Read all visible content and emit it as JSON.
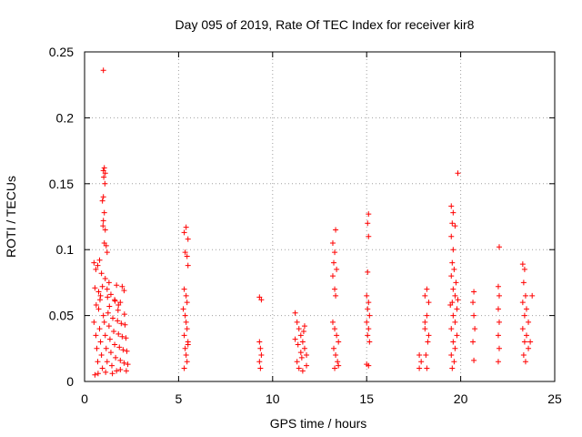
{
  "chart_data": {
    "type": "scatter",
    "title": "Day 095 of 2019, Rate Of TEC Index for receiver kir8",
    "xlabel": "GPS time / hours",
    "ylabel": "ROTI / TECUs",
    "xlim": [
      0,
      25
    ],
    "ylim": [
      0,
      0.25
    ],
    "xticks": [
      0,
      5,
      10,
      15,
      20,
      25
    ],
    "yticks": [
      0,
      0.05,
      0.1,
      0.15,
      0.2,
      0.25
    ],
    "xtick_labels": [
      "0",
      "5",
      "10",
      "15",
      "20",
      "25"
    ],
    "ytick_labels": [
      "0",
      "0.05",
      "0.1",
      "0.15",
      "0.2",
      "0.25"
    ],
    "grid": true,
    "marker": "+",
    "color": "#ff0000",
    "series": [
      {
        "name": "ROTI",
        "points": [
          [
            1.0,
            0.236
          ],
          [
            1.05,
            0.162
          ],
          [
            1.0,
            0.16
          ],
          [
            1.1,
            0.158
          ],
          [
            1.02,
            0.155
          ],
          [
            1.08,
            0.15
          ],
          [
            1.0,
            0.14
          ],
          [
            0.95,
            0.137
          ],
          [
            1.05,
            0.128
          ],
          [
            1.0,
            0.122
          ],
          [
            0.98,
            0.118
          ],
          [
            1.1,
            0.115
          ],
          [
            1.05,
            0.105
          ],
          [
            1.15,
            0.103
          ],
          [
            1.2,
            0.098
          ],
          [
            0.5,
            0.09
          ],
          [
            0.6,
            0.085
          ],
          [
            0.7,
            0.088
          ],
          [
            0.8,
            0.092
          ],
          [
            0.9,
            0.082
          ],
          [
            1.1,
            0.078
          ],
          [
            1.3,
            0.075
          ],
          [
            0.55,
            0.071
          ],
          [
            0.75,
            0.068
          ],
          [
            0.85,
            0.065
          ],
          [
            0.95,
            0.072
          ],
          [
            1.2,
            0.07
          ],
          [
            1.4,
            0.066
          ],
          [
            1.6,
            0.062
          ],
          [
            1.8,
            0.058
          ],
          [
            2.0,
            0.072
          ],
          [
            2.1,
            0.069
          ],
          [
            1.7,
            0.073
          ],
          [
            1.9,
            0.06
          ],
          [
            0.5,
            0.045
          ],
          [
            0.6,
            0.035
          ],
          [
            0.65,
            0.025
          ],
          [
            0.7,
            0.015
          ],
          [
            0.75,
            0.055
          ],
          [
            0.8,
            0.04
          ],
          [
            0.85,
            0.03
          ],
          [
            0.9,
            0.02
          ],
          [
            0.95,
            0.01
          ],
          [
            1.0,
            0.05
          ],
          [
            1.05,
            0.045
          ],
          [
            1.1,
            0.035
          ],
          [
            1.15,
            0.025
          ],
          [
            1.2,
            0.015
          ],
          [
            1.25,
            0.052
          ],
          [
            1.3,
            0.042
          ],
          [
            1.35,
            0.032
          ],
          [
            1.4,
            0.022
          ],
          [
            1.45,
            0.012
          ],
          [
            1.5,
            0.048
          ],
          [
            1.55,
            0.038
          ],
          [
            1.6,
            0.028
          ],
          [
            1.65,
            0.018
          ],
          [
            1.7,
            0.008
          ],
          [
            1.75,
            0.046
          ],
          [
            1.8,
            0.036
          ],
          [
            1.85,
            0.026
          ],
          [
            1.9,
            0.016
          ],
          [
            1.95,
            0.044
          ],
          [
            2.0,
            0.034
          ],
          [
            2.05,
            0.024
          ],
          [
            2.1,
            0.014
          ],
          [
            2.15,
            0.043
          ],
          [
            2.2,
            0.033
          ],
          [
            2.25,
            0.023
          ],
          [
            2.3,
            0.013
          ],
          [
            0.55,
            0.005
          ],
          [
            0.72,
            0.006
          ],
          [
            1.12,
            0.007
          ],
          [
            1.48,
            0.006
          ],
          [
            1.9,
            0.009
          ],
          [
            2.22,
            0.008
          ],
          [
            0.62,
            0.058
          ],
          [
            1.32,
            0.057
          ],
          [
            1.78,
            0.054
          ],
          [
            2.12,
            0.051
          ],
          [
            0.82,
            0.062
          ],
          [
            1.22,
            0.064
          ],
          [
            1.62,
            0.061
          ],
          [
            5.4,
            0.117
          ],
          [
            5.3,
            0.113
          ],
          [
            5.5,
            0.108
          ],
          [
            5.35,
            0.098
          ],
          [
            5.45,
            0.095
          ],
          [
            5.5,
            0.088
          ],
          [
            5.3,
            0.07
          ],
          [
            5.4,
            0.065
          ],
          [
            5.45,
            0.06
          ],
          [
            5.25,
            0.055
          ],
          [
            5.35,
            0.05
          ],
          [
            5.4,
            0.045
          ],
          [
            5.45,
            0.04
          ],
          [
            5.3,
            0.035
          ],
          [
            5.5,
            0.03
          ],
          [
            5.35,
            0.025
          ],
          [
            5.4,
            0.02
          ],
          [
            5.45,
            0.015
          ],
          [
            5.3,
            0.01
          ],
          [
            5.5,
            0.028
          ],
          [
            9.3,
            0.064
          ],
          [
            9.4,
            0.062
          ],
          [
            9.3,
            0.03
          ],
          [
            9.35,
            0.025
          ],
          [
            9.4,
            0.02
          ],
          [
            9.3,
            0.015
          ],
          [
            9.35,
            0.01
          ],
          [
            11.2,
            0.052
          ],
          [
            11.3,
            0.045
          ],
          [
            11.4,
            0.04
          ],
          [
            11.5,
            0.035
          ],
          [
            11.6,
            0.03
          ],
          [
            11.7,
            0.025
          ],
          [
            11.8,
            0.02
          ],
          [
            11.3,
            0.015
          ],
          [
            11.4,
            0.01
          ],
          [
            11.6,
            0.008
          ],
          [
            11.2,
            0.032
          ],
          [
            11.5,
            0.022
          ],
          [
            11.7,
            0.042
          ],
          [
            11.8,
            0.012
          ],
          [
            11.35,
            0.028
          ],
          [
            11.55,
            0.018
          ],
          [
            11.65,
            0.038
          ],
          [
            13.35,
            0.115
          ],
          [
            13.2,
            0.105
          ],
          [
            13.3,
            0.098
          ],
          [
            13.25,
            0.09
          ],
          [
            13.4,
            0.085
          ],
          [
            13.2,
            0.08
          ],
          [
            13.3,
            0.07
          ],
          [
            13.35,
            0.065
          ],
          [
            13.2,
            0.045
          ],
          [
            13.3,
            0.04
          ],
          [
            13.4,
            0.035
          ],
          [
            13.5,
            0.03
          ],
          [
            13.25,
            0.025
          ],
          [
            13.35,
            0.02
          ],
          [
            13.45,
            0.015
          ],
          [
            13.3,
            0.01
          ],
          [
            13.5,
            0.012
          ],
          [
            15.1,
            0.127
          ],
          [
            15.05,
            0.12
          ],
          [
            15.1,
            0.11
          ],
          [
            15.05,
            0.083
          ],
          [
            15.0,
            0.065
          ],
          [
            15.1,
            0.06
          ],
          [
            15.05,
            0.055
          ],
          [
            15.15,
            0.05
          ],
          [
            15.0,
            0.045
          ],
          [
            15.1,
            0.04
          ],
          [
            15.05,
            0.035
          ],
          [
            15.15,
            0.03
          ],
          [
            15.0,
            0.013
          ],
          [
            15.1,
            0.012
          ],
          [
            17.8,
            0.02
          ],
          [
            17.9,
            0.015
          ],
          [
            17.8,
            0.01
          ],
          [
            18.2,
            0.07
          ],
          [
            18.1,
            0.065
          ],
          [
            18.3,
            0.06
          ],
          [
            18.2,
            0.05
          ],
          [
            18.1,
            0.04
          ],
          [
            18.25,
            0.03
          ],
          [
            18.15,
            0.02
          ],
          [
            18.2,
            0.01
          ],
          [
            18.3,
            0.035
          ],
          [
            18.1,
            0.045
          ],
          [
            19.5,
            0.133
          ],
          [
            19.6,
            0.128
          ],
          [
            19.55,
            0.12
          ],
          [
            19.7,
            0.118
          ],
          [
            19.5,
            0.11
          ],
          [
            19.6,
            0.1
          ],
          [
            19.55,
            0.09
          ],
          [
            19.65,
            0.085
          ],
          [
            19.5,
            0.08
          ],
          [
            19.6,
            0.07
          ],
          [
            19.7,
            0.065
          ],
          [
            19.55,
            0.06
          ],
          [
            19.8,
            0.055
          ],
          [
            19.6,
            0.05
          ],
          [
            19.7,
            0.045
          ],
          [
            19.5,
            0.04
          ],
          [
            19.8,
            0.035
          ],
          [
            19.6,
            0.03
          ],
          [
            19.7,
            0.025
          ],
          [
            19.5,
            0.02
          ],
          [
            19.65,
            0.015
          ],
          [
            19.55,
            0.01
          ],
          [
            19.75,
            0.075
          ],
          [
            19.85,
            0.062
          ],
          [
            19.45,
            0.058
          ],
          [
            19.85,
            0.158
          ],
          [
            20.7,
            0.068
          ],
          [
            20.65,
            0.06
          ],
          [
            20.7,
            0.05
          ],
          [
            20.75,
            0.04
          ],
          [
            20.65,
            0.03
          ],
          [
            20.7,
            0.016
          ],
          [
            22.05,
            0.102
          ],
          [
            22.0,
            0.072
          ],
          [
            22.05,
            0.065
          ],
          [
            22.0,
            0.055
          ],
          [
            22.05,
            0.045
          ],
          [
            22.0,
            0.035
          ],
          [
            22.05,
            0.025
          ],
          [
            22.0,
            0.015
          ],
          [
            23.3,
            0.089
          ],
          [
            23.4,
            0.085
          ],
          [
            23.35,
            0.075
          ],
          [
            23.45,
            0.065
          ],
          [
            23.3,
            0.06
          ],
          [
            23.5,
            0.055
          ],
          [
            23.4,
            0.05
          ],
          [
            23.6,
            0.045
          ],
          [
            23.3,
            0.04
          ],
          [
            23.5,
            0.035
          ],
          [
            23.4,
            0.03
          ],
          [
            23.6,
            0.025
          ],
          [
            23.35,
            0.02
          ],
          [
            23.45,
            0.015
          ],
          [
            23.8,
            0.065
          ],
          [
            23.7,
            0.03
          ]
        ]
      }
    ]
  }
}
